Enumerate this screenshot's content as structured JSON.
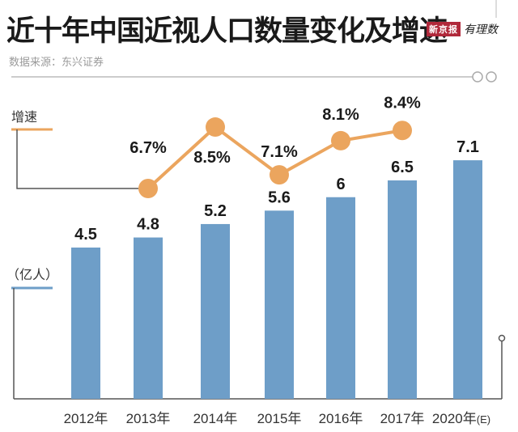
{
  "header": {
    "title": "近十年中国近视人口数量变化及增速",
    "source": "数据来源：东兴证券",
    "brand_badge": "新京报",
    "brand_script": "有理数"
  },
  "colors": {
    "bar": "#6e9ec8",
    "line": "#eba55e",
    "axis": "#555555",
    "text": "#1a1a1a"
  },
  "chart_data": {
    "type": "bar+line",
    "title": "近十年中国近视人口数量变化及增速",
    "categories": [
      "2012年",
      "2013年",
      "2014年",
      "2015年",
      "2016年",
      "2017年",
      "2020年"
    ],
    "category_suffix": [
      "",
      "",
      "",
      "",
      "",
      "",
      "(E)"
    ],
    "series": [
      {
        "name": "近视人口",
        "type": "bar",
        "unit_label": "（亿人）",
        "values": [
          4.5,
          4.8,
          5.2,
          5.6,
          6,
          6.5,
          7.1
        ],
        "value_labels": [
          "4.5",
          "4.8",
          "5.2",
          "5.6",
          "6",
          "6.5",
          "7.1"
        ]
      },
      {
        "name": "增速",
        "type": "line",
        "unit_label": "增速",
        "values": [
          null,
          6.7,
          8.5,
          7.1,
          8.1,
          8.4,
          null
        ],
        "value_labels": [
          "",
          "6.7%",
          "8.5%",
          "7.1%",
          "8.1%",
          "8.4%",
          ""
        ]
      }
    ],
    "xlabel": "",
    "ylabel": "（亿人）",
    "grid": false,
    "legend": "none"
  }
}
